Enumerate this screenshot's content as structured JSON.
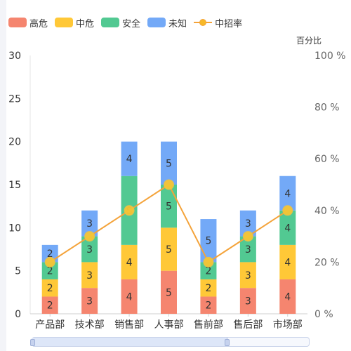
{
  "legend": {
    "items": [
      {
        "label": "高危",
        "color": "#f5856f"
      },
      {
        "label": "中危",
        "color": "#ffc837"
      },
      {
        "label": "安全",
        "color": "#52c992"
      },
      {
        "label": "未知",
        "color": "#73a9f7"
      },
      {
        "label": "中招率",
        "color": "#f4a33a"
      }
    ]
  },
  "chart_data": {
    "type": "bar",
    "stacked": true,
    "categories": [
      "产品部",
      "技术部",
      "销售部",
      "人事部",
      "售前部",
      "售后部",
      "市场部"
    ],
    "series": [
      {
        "name": "高危",
        "values": [
          2,
          3,
          4,
          5,
          2,
          3,
          4
        ],
        "color": "#f5856f"
      },
      {
        "name": "中危",
        "values": [
          2,
          3,
          4,
          5,
          2,
          3,
          4
        ],
        "color": "#ffc837"
      },
      {
        "name": "安全",
        "values": [
          2,
          3,
          8,
          5,
          2,
          3,
          4
        ],
        "color": "#52c992"
      },
      {
        "name": "未知",
        "values": [
          2,
          3,
          4,
          5,
          5,
          3,
          4
        ],
        "color": "#73a9f7"
      }
    ],
    "line_series": {
      "name": "中招率",
      "values": [
        20,
        30,
        40,
        50,
        20,
        30,
        40
      ],
      "color": "#f4a33a",
      "marker_color": "#f7c534"
    },
    "data_labels_hidden_by_marker": [
      [],
      [],
      [
        [
          "安全",
          2
        ]
      ],
      [
        [
          "中危",
          3
        ]
      ],
      [],
      [],
      [
        [
          "安全",
          6
        ]
      ]
    ],
    "y_left": {
      "min": 0,
      "max": 30,
      "ticks": [
        0,
        5,
        10,
        15,
        20,
        25,
        30
      ]
    },
    "y_right": {
      "min": 0,
      "max": 100,
      "ticks": [
        "0 %",
        "20 %",
        "40 %",
        "60 %",
        "80 %",
        "100 %"
      ],
      "label": "百分比"
    },
    "data_zoom": {
      "start_percent": 0,
      "end_percent": 70
    }
  }
}
